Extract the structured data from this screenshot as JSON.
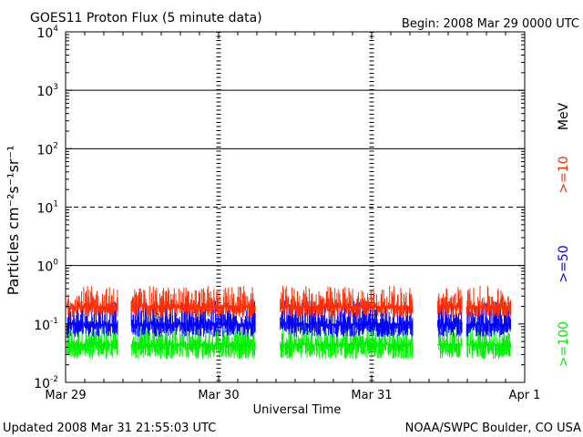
{
  "header": {
    "title": "GOES11 Proton Flux (5 minute data)",
    "begin": "Begin: 2008 Mar 29 0000 UTC"
  },
  "footer": {
    "updated": "Updated 2008 Mar 31 21:55:03 UTC",
    "credit": "NOAA/SWPC Boulder, CO USA"
  },
  "chart_data": {
    "type": "line",
    "title": "GOES11 Proton Flux (5 minute data)",
    "xlabel": "Universal Time",
    "ylabel": "Particles cm⁻²s⁻¹sr⁻¹",
    "yscale": "log",
    "ylim": [
      0.01,
      10000
    ],
    "xlim": [
      "2008-03-29",
      "2008-04-01"
    ],
    "x_ticks": [
      "Mar 29",
      "Mar 30",
      "Mar 31",
      "Apr 1"
    ],
    "y_ticks": [
      {
        "mantissa": "10",
        "exp": "-2",
        "value": 0.01
      },
      {
        "mantissa": "10",
        "exp": "-1",
        "value": 0.1
      },
      {
        "mantissa": "10",
        "exp": "0",
        "value": 1
      },
      {
        "mantissa": "10",
        "exp": "1",
        "value": 10
      },
      {
        "mantissa": "10",
        "exp": "2",
        "value": 100
      },
      {
        "mantissa": "10",
        "exp": "3",
        "value": 1000
      },
      {
        "mantissa": "10",
        "exp": "4",
        "value": 10000
      }
    ],
    "reference_lines": [
      {
        "value": 1,
        "style": "solid"
      },
      {
        "value": 10,
        "style": "dashed"
      },
      {
        "value": 100,
        "style": "solid"
      },
      {
        "value": 1000,
        "style": "solid"
      }
    ],
    "series_unit": "MeV",
    "data_gaps_days": [
      [
        0.34,
        0.43
      ],
      [
        1.24,
        1.4
      ],
      [
        2.27,
        2.43
      ],
      [
        2.59,
        2.62
      ]
    ],
    "data_end_day": 2.91,
    "series": [
      {
        "name": ">=10",
        "color": "#ff2a00",
        "min": 0.13,
        "max": 0.45,
        "typical": 0.2
      },
      {
        "name": ">=50",
        "color": "#0000ff",
        "min": 0.06,
        "max": 0.25,
        "typical": 0.1
      },
      {
        "name": ">=100",
        "color": "#00ee00",
        "min": 0.025,
        "max": 0.1,
        "typical": 0.045
      }
    ]
  }
}
